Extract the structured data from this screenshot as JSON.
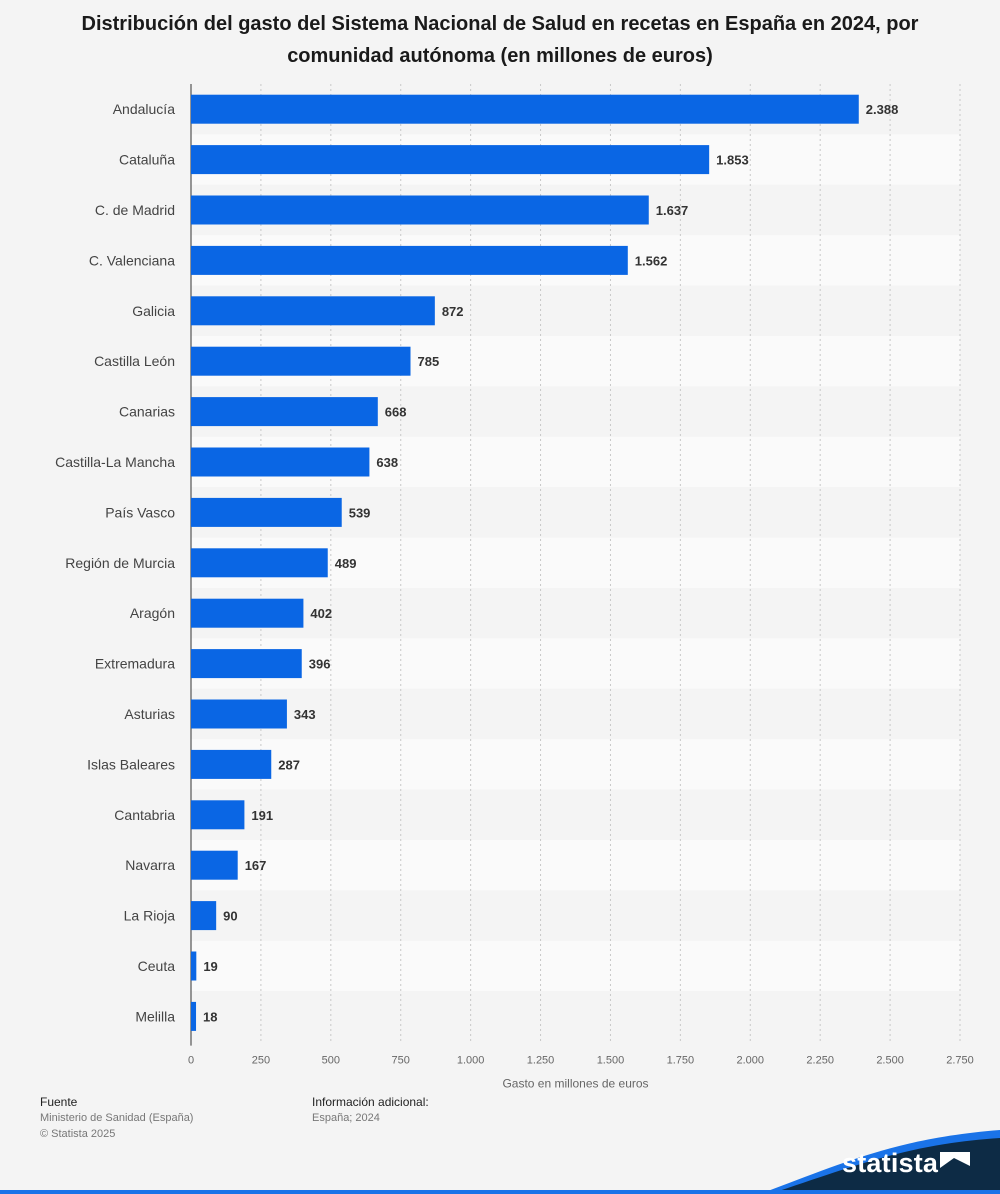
{
  "chart_data": {
    "type": "bar",
    "orientation": "horizontal",
    "title": "Distribución del gasto del Sistema Nacional de Salud en recetas en España en 2024, por comunidad autónoma (en millones de euros)",
    "categories": [
      "Andalucía",
      "Cataluña",
      "C. de Madrid",
      "C. Valenciana",
      "Galicia",
      "Castilla León",
      "Canarias",
      "Castilla-La Mancha",
      "País Vasco",
      "Región de Murcia",
      "Aragón",
      "Extremadura",
      "Asturias",
      "Islas Baleares",
      "Cantabria",
      "Navarra",
      "La Rioja",
      "Ceuta",
      "Melilla"
    ],
    "values": [
      2388,
      1853,
      1637,
      1562,
      872,
      785,
      668,
      638,
      539,
      489,
      402,
      396,
      343,
      287,
      191,
      167,
      90,
      19,
      18
    ],
    "value_labels": [
      "2.388",
      "1.853",
      "1.637",
      "1.562",
      "872",
      "785",
      "668",
      "638",
      "539",
      "489",
      "402",
      "396",
      "343",
      "287",
      "191",
      "167",
      "90",
      "19",
      "18"
    ],
    "xlabel": "Gasto en millones de euros",
    "ylabel": "",
    "xlim": [
      0,
      2750
    ],
    "x_ticks": [
      0,
      250,
      500,
      750,
      1000,
      1250,
      1500,
      1750,
      2000,
      2250,
      2500,
      2750
    ],
    "x_tick_labels": [
      "0",
      "250",
      "500",
      "750",
      "1.000",
      "1.250",
      "1.500",
      "1.750",
      "2.000",
      "2.250",
      "2.500",
      "2.750"
    ],
    "grid": "vertical dashed",
    "bar_color": "#0a66e4",
    "stripe_colors": [
      "#f4f4f4",
      "#fafafa"
    ]
  },
  "footer": {
    "source_heading": "Fuente",
    "source_text": "Ministerio de Sanidad (España)",
    "copyright": "© Statista 2025",
    "info_heading": "Información adicional:",
    "info_text": "España; 2024"
  },
  "brand": {
    "name": "statista",
    "band_color": "#0d2b45",
    "accent_color": "#1a73e8"
  }
}
